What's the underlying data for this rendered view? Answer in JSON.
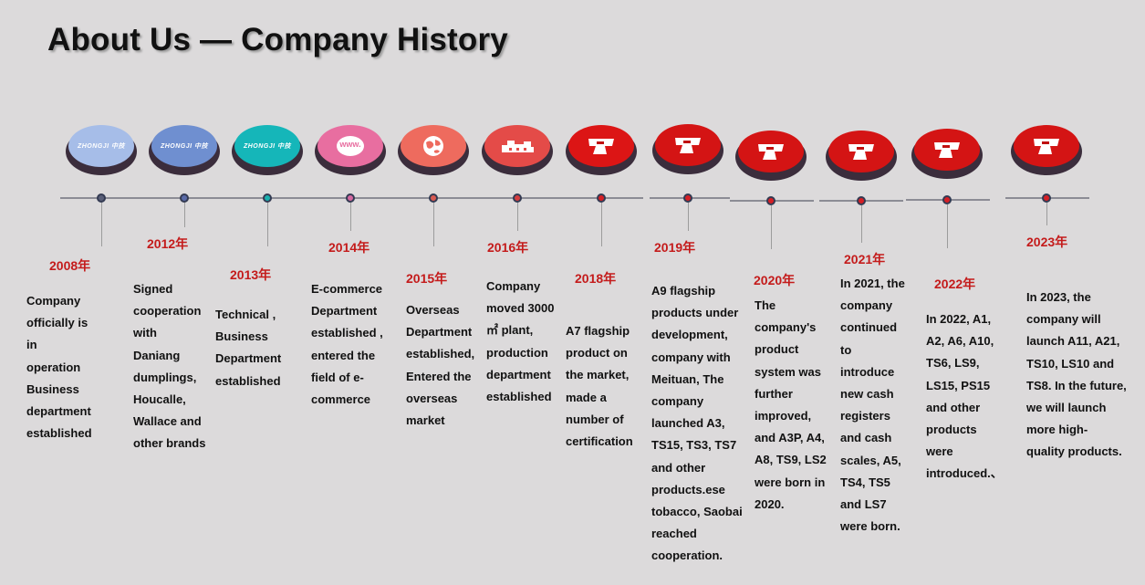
{
  "page": {
    "title": "About Us — Company History"
  },
  "colors": {
    "background": "#dcdadb",
    "year_text": "#c41b1b",
    "timeline_line": "#8c8c95",
    "badge_shadow": "#3b2d3c"
  },
  "timeline": [
    {
      "year": "2008年",
      "icon": "zhongji-logo-icon",
      "badge_color": "#a6bde8",
      "dot_color": "#5a5f78",
      "logo_label": "ZHONGJI 中技",
      "description": "Company\nofficially is\nin\noperation\nBusiness\ndepartment\nestablished"
    },
    {
      "year": "2012年",
      "icon": "zhongji-logo-icon",
      "badge_color": "#6f8fd0",
      "dot_color": "#5a6aa8",
      "logo_label": "ZHONGJI 中技",
      "description": "Signed\ncooperation\nwith\nDaniang\ndumplings,\nHoucalle,\nWallace and\nother brands"
    },
    {
      "year": "2013年",
      "icon": "zhongji-logo-icon",
      "badge_color": "#15b6b9",
      "dot_color": "#1ab0ae",
      "logo_label": "ZHONGJI 中技",
      "description": "Technical ,\nBusiness\nDepartment\nestablished"
    },
    {
      "year": "2014年",
      "icon": "www-icon",
      "badge_color": "#e86ea0",
      "dot_color": "#d468a0",
      "logo_label": "www.",
      "description": "E-commerce\nDepartment\nestablished ,\nentered the\nfield of e-\ncommerce"
    },
    {
      "year": "2015年",
      "icon": "globe-icon",
      "badge_color": "#ee6b5e",
      "dot_color": "#d95a52",
      "description": "Overseas\nDepartment\nestablished,\nEntered the\noverseas\nmarket"
    },
    {
      "year": "2016年",
      "icon": "factory-icon",
      "badge_color": "#e44b48",
      "dot_color": "#d53d3f",
      "description": "Company\nmoved 3000\n㎡ plant,\nproduction\ndepartment\nestablished"
    },
    {
      "year": "2018年",
      "icon": "scale-icon",
      "badge_color": "#dc1515",
      "dot_color": "#d61f25",
      "description": "A7 flagship\nproduct on\nthe market,\nmade a\nnumber of\ncertification"
    },
    {
      "year": "2019年",
      "icon": "scale-icon",
      "badge_color": "#d41414",
      "dot_color": "#d61f25",
      "description": "A9 flagship\nproducts under\ndevelopment,\ncompany with\nMeituan,  The\ncompany\nlaunched A3,\nTS15, TS3, TS7\nand other\nproducts.ese\ntobacco, Saobai\nreached\ncooperation."
    },
    {
      "year": "2020年",
      "icon": "scale-icon",
      "badge_color": "#d41414",
      "dot_color": "#d61f25",
      "description": "The\ncompany's\nproduct\nsystem was\nfurther\nimproved,\nand A3P, A4,\nA8, TS9, LS2\nwere born in\n2020."
    },
    {
      "year": "2021年",
      "icon": "scale-icon",
      "badge_color": "#d41414",
      "dot_color": "#d61f25",
      "description": "In 2021, the\ncompany\ncontinued\nto\nintroduce\nnew cash\nregisters\nand cash\nscales, A5,\nTS4, TS5\nand LS7\nwere born."
    },
    {
      "year": "2022年",
      "icon": "scale-icon",
      "badge_color": "#d41414",
      "dot_color": "#d61f25",
      "description": "In 2022, A1,\nA2, A6, A10,\nTS6, LS9,\nLS15, PS15\nand other\nproducts\nwere\nintroduced.、"
    },
    {
      "year": "2023年",
      "icon": "scale-icon",
      "badge_color": "#d41414",
      "dot_color": "#d61f25",
      "description": "In 2023, the\ncompany will\nlaunch A11, A21,\nTS10, LS10 and\nTS8. In the future,\nwe will launch\nmore high-\nquality products."
    }
  ]
}
